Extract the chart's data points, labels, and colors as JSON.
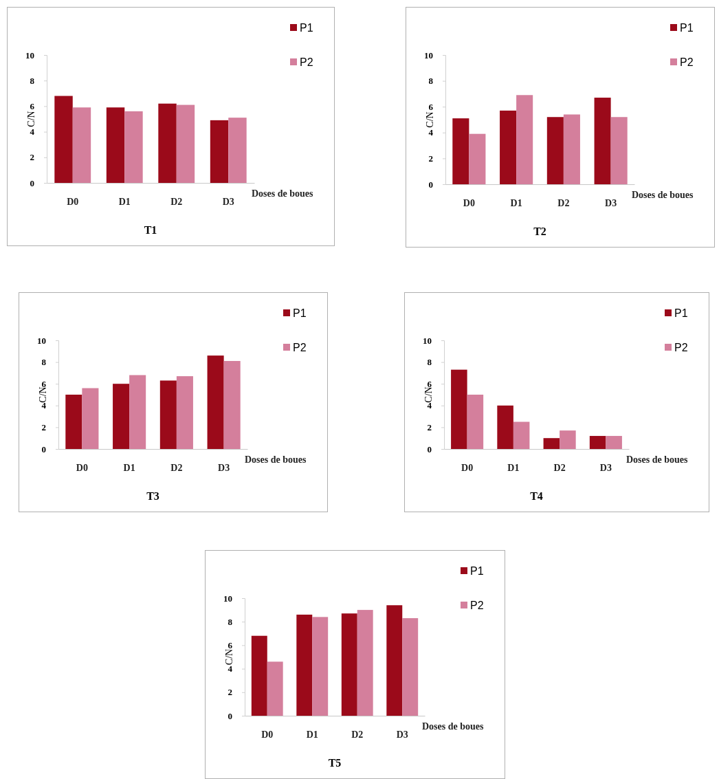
{
  "chart_data": [
    {
      "type": "bar",
      "title": "T1",
      "xlabel": "Doses de boues",
      "ylabel": "C/N",
      "categories": [
        "D0",
        "D1",
        "D2",
        "D3"
      ],
      "ylim": [
        0,
        10
      ],
      "yticks": [
        0,
        2,
        4,
        6,
        8,
        10
      ],
      "legend": "top right",
      "series": [
        {
          "name": "P1",
          "color": "#9b0a1a",
          "values": [
            6.8,
            5.9,
            6.2,
            4.9
          ]
        },
        {
          "name": "P2",
          "color": "#d47f9c",
          "values": [
            5.9,
            5.6,
            6.1,
            5.1
          ]
        }
      ]
    },
    {
      "type": "bar",
      "title": "T2",
      "xlabel": "Doses de boues",
      "ylabel": "C/N",
      "categories": [
        "D0",
        "D1",
        "D2",
        "D3"
      ],
      "ylim": [
        0,
        10
      ],
      "yticks": [
        0,
        2,
        4,
        6,
        8,
        10
      ],
      "legend": "top right",
      "series": [
        {
          "name": "P1",
          "color": "#9b0a1a",
          "values": [
            5.1,
            5.7,
            5.2,
            6.7
          ]
        },
        {
          "name": "P2",
          "color": "#d47f9c",
          "values": [
            3.9,
            6.9,
            5.4,
            5.2
          ]
        }
      ]
    },
    {
      "type": "bar",
      "title": "T3",
      "xlabel": "Doses de boues",
      "ylabel": "C/N",
      "categories": [
        "D0",
        "D1",
        "D2",
        "D3"
      ],
      "ylim": [
        0,
        10
      ],
      "yticks": [
        0,
        2,
        4,
        6,
        8,
        10
      ],
      "legend": "top right",
      "series": [
        {
          "name": "P1",
          "color": "#9b0a1a",
          "values": [
            5.0,
            6.0,
            6.3,
            8.6
          ]
        },
        {
          "name": "P2",
          "color": "#d47f9c",
          "values": [
            5.6,
            6.8,
            6.7,
            8.1
          ]
        }
      ]
    },
    {
      "type": "bar",
      "title": "T4",
      "xlabel": "Doses de boues",
      "ylabel": "C/N",
      "categories": [
        "D0",
        "D1",
        "D2",
        "D3"
      ],
      "ylim": [
        0,
        10
      ],
      "yticks": [
        0,
        2,
        4,
        6,
        8,
        10
      ],
      "legend": "top right",
      "series": [
        {
          "name": "P1",
          "color": "#9b0a1a",
          "values": [
            7.3,
            4.0,
            1.0,
            1.2
          ]
        },
        {
          "name": "P2",
          "color": "#d47f9c",
          "values": [
            5.0,
            2.5,
            1.7,
            1.2
          ]
        }
      ]
    },
    {
      "type": "bar",
      "title": "T5",
      "xlabel": "Doses de boues",
      "ylabel": "C/N",
      "categories": [
        "D0",
        "D1",
        "D2",
        "D3"
      ],
      "ylim": [
        0,
        10
      ],
      "yticks": [
        0,
        2,
        4,
        6,
        8,
        10
      ],
      "legend": "top right",
      "series": [
        {
          "name": "P1",
          "color": "#9b0a1a",
          "values": [
            6.8,
            8.6,
            8.7,
            9.4
          ]
        },
        {
          "name": "P2",
          "color": "#d47f9c",
          "values": [
            4.6,
            8.4,
            9.0,
            8.3
          ]
        }
      ]
    }
  ]
}
